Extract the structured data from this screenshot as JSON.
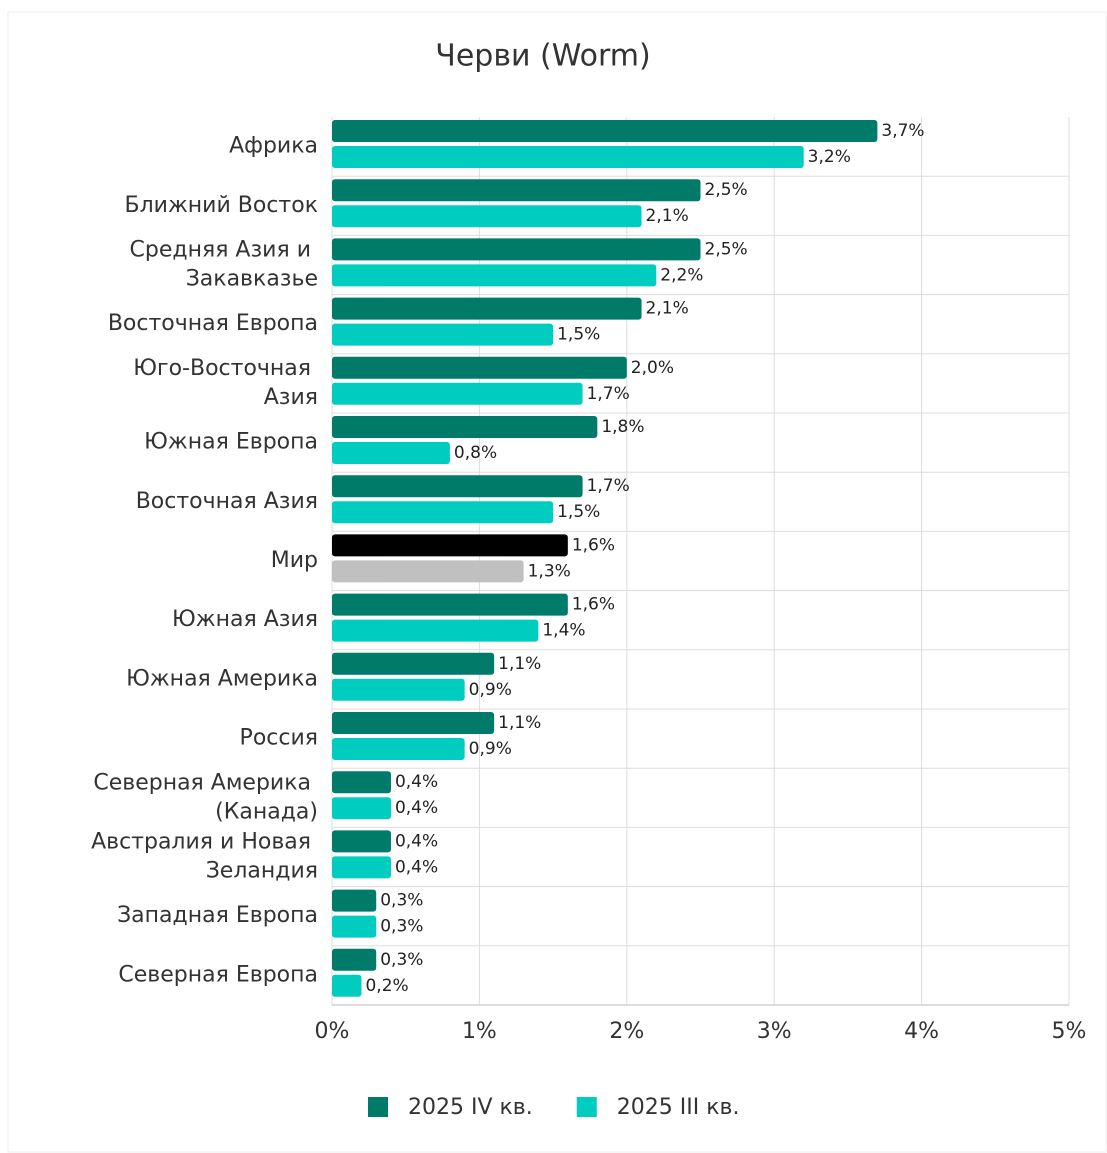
{
  "chart_data": {
    "type": "hbar",
    "title": "Черви (Worm)",
    "categories": [
      "Африка",
      "Ближний Восток",
      "Средняя Азия и Закавказье",
      "Восточная Европа",
      "Юго-Восточная Азия",
      "Южная Европа",
      "Восточная Азия",
      "Мир",
      "Южная Азия",
      "Южная Америка",
      "Россия",
      "Северная Америка (Канада)",
      "Австралия и Новая Зеландия",
      "Западная Европа",
      "Северная Европа"
    ],
    "series": [
      {
        "name": "2025 IV кв.",
        "color": "#007b69",
        "highlight_color": "#000000",
        "values": [
          3.7,
          2.5,
          2.5,
          2.1,
          2.0,
          1.8,
          1.7,
          1.6,
          1.6,
          1.1,
          1.1,
          0.4,
          0.4,
          0.3,
          0.3
        ],
        "value_labels": [
          "3,7%",
          "2,5%",
          "2,5%",
          "2,1%",
          "2,0%",
          "1,8%",
          "1,7%",
          "1,6%",
          "1,6%",
          "1,1%",
          "1,1%",
          "0,4%",
          "0,4%",
          "0,3%",
          "0,3%"
        ]
      },
      {
        "name": "2025 III кв.",
        "color": "#00cdbf",
        "highlight_color": "#c0c0c0",
        "values": [
          3.2,
          2.1,
          2.2,
          1.5,
          1.7,
          0.8,
          1.5,
          1.3,
          1.4,
          0.9,
          0.9,
          0.4,
          0.4,
          0.3,
          0.2
        ],
        "value_labels": [
          "3,2%",
          "2,1%",
          "2,2%",
          "1,5%",
          "1,7%",
          "0,8%",
          "1,5%",
          "1,3%",
          "1,4%",
          "0,9%",
          "0,9%",
          "0,4%",
          "0,4%",
          "0,3%",
          "0,2%"
        ]
      }
    ],
    "highlight_category": "Мир",
    "xlim": [
      0,
      5
    ],
    "xticks": [
      {
        "value": 0,
        "label": "0%"
      },
      {
        "value": 1,
        "label": "1%"
      },
      {
        "value": 2,
        "label": "2%"
      },
      {
        "value": 3,
        "label": "3%"
      },
      {
        "value": 4,
        "label": "4%"
      },
      {
        "value": 5,
        "label": "5%"
      }
    ],
    "grid": true,
    "legend": "bottom"
  }
}
